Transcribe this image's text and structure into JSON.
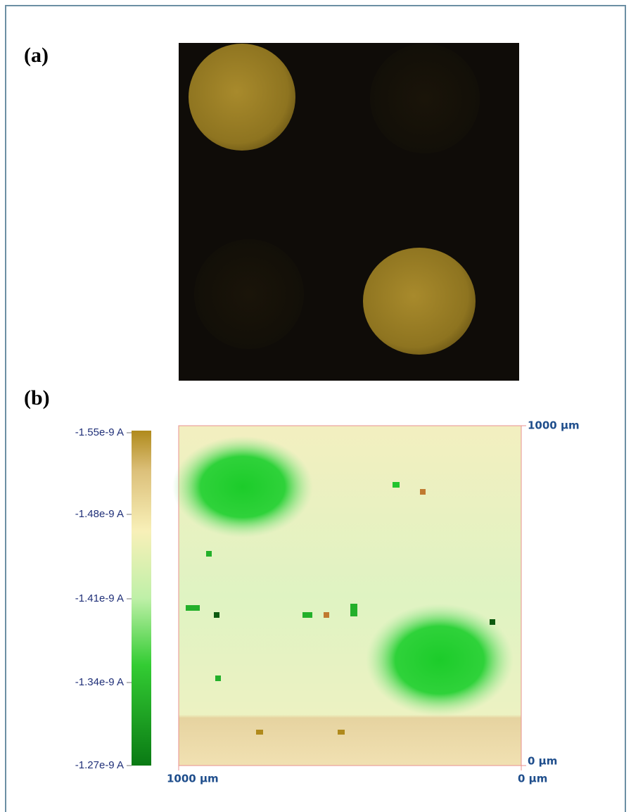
{
  "panel_a": {
    "label": "(a)"
  },
  "panel_b": {
    "label": "(b)",
    "colorbar": {
      "labels": [
        "-1.55e-9 A",
        "-1.48e-9 A",
        "-1.41e-9 A",
        "-1.34e-9 A",
        "-1.27e-9 A"
      ]
    },
    "map": {
      "right_top": "1000 µm",
      "right_bottom": "0 µm",
      "bottom_left": "1000 µm",
      "bottom_right": "0 µm"
    }
  }
}
